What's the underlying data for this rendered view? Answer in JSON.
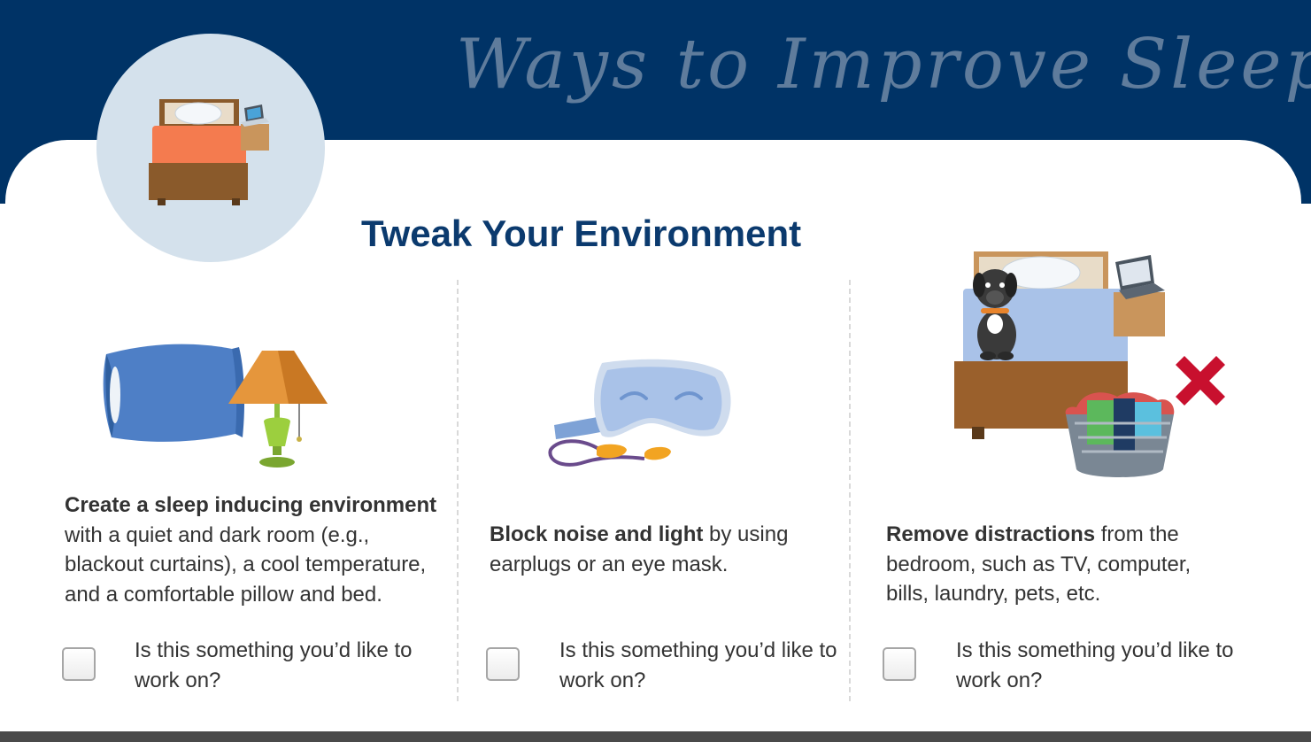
{
  "header": {
    "title": "Ways to Improve Sleep"
  },
  "section": {
    "title": "Tweak Your Environment"
  },
  "columns": [
    {
      "bold": "Create a sleep inducing environment",
      "text": " with a quiet and dark room (e.g., blackout curtains), a cool temperature, and a comfortable pillow and bed.",
      "question": "Is this something you’d like to work on?",
      "checked": false,
      "icon": "pillow-lamp-icon"
    },
    {
      "bold": "Block noise and light",
      "text": " by using earplugs or an eye mask.",
      "question": "Is this something you’d like to work on?",
      "checked": false,
      "icon": "eye-mask-earplugs-icon"
    },
    {
      "bold": "Remove distractions",
      "text": " from the bedroom, such as TV, computer, bills, laundry, pets, etc.",
      "question": "Is this something you’d like to work on?",
      "checked": false,
      "icon": "bedroom-distractions-icon"
    }
  ],
  "colors": {
    "header_bg": "#003366",
    "header_text": "#5f7c9c",
    "section_title": "#0b3a6e",
    "body_text": "#333333",
    "circle_bg": "#d4e1ec",
    "x_mark": "#c8102e"
  }
}
